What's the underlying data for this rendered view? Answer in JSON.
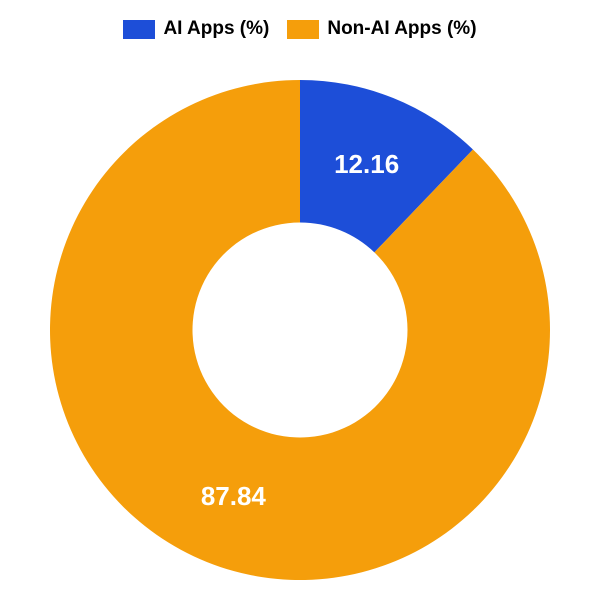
{
  "chart": {
    "type": "donut",
    "background_color": "#ffffff",
    "inner_radius_ratio": 0.43,
    "slices": [
      {
        "label": "AI Apps (%)",
        "value": 12.16,
        "color": "#1d4ed8",
        "value_text": "12.16"
      },
      {
        "label": "Non-AI Apps (%)",
        "value": 87.84,
        "color": "#f59e0b",
        "value_text": "87.84"
      }
    ],
    "legend": {
      "position": "top",
      "fontsize": 19,
      "font_weight": "bold",
      "text_color": "#000000",
      "swatch_width": 32,
      "swatch_height": 19
    },
    "label_fontsize": 26,
    "label_color": "#ffffff",
    "label_font_weight": "bold",
    "start_angle_deg": 0
  }
}
